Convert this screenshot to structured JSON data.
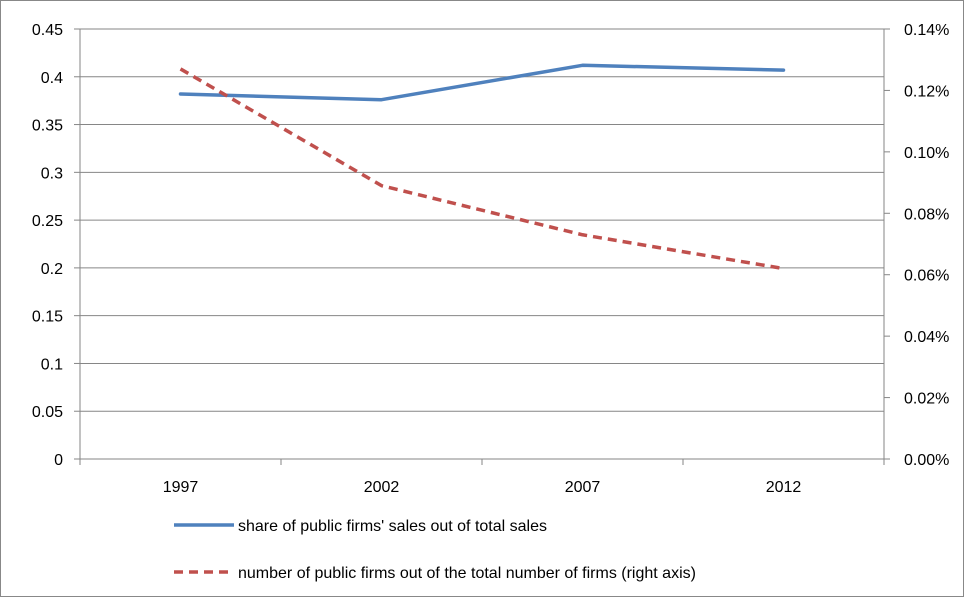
{
  "chart_data": {
    "type": "line",
    "categories": [
      "1997",
      "2002",
      "2007",
      "2012"
    ],
    "series": [
      {
        "name": "share of public firms' sales out of total sales",
        "axis": "left",
        "values": [
          0.382,
          0.376,
          0.412,
          0.407
        ],
        "color": "#4f81bd",
        "style": "solid"
      },
      {
        "name": "number of public firms out of the total number of firms (right axis)",
        "axis": "right",
        "values": [
          0.127,
          0.089,
          0.073,
          0.062
        ],
        "unit": "%",
        "color": "#c0504d",
        "style": "dashed"
      }
    ],
    "y_left": {
      "ticks": [
        "0.45",
        "0.4",
        "0.35",
        "0.3",
        "0.25",
        "0.2",
        "0.15",
        "0.1",
        "0.05",
        "0"
      ],
      "ylim": [
        0,
        0.45
      ]
    },
    "y_right": {
      "ticks": [
        "0.14%",
        "0.12%",
        "0.10%",
        "0.08%",
        "0.06%",
        "0.04%",
        "0.02%",
        "0.00%"
      ],
      "ylim": [
        0,
        0.14
      ]
    },
    "grid": "horizontal",
    "legend_position": "bottom"
  }
}
